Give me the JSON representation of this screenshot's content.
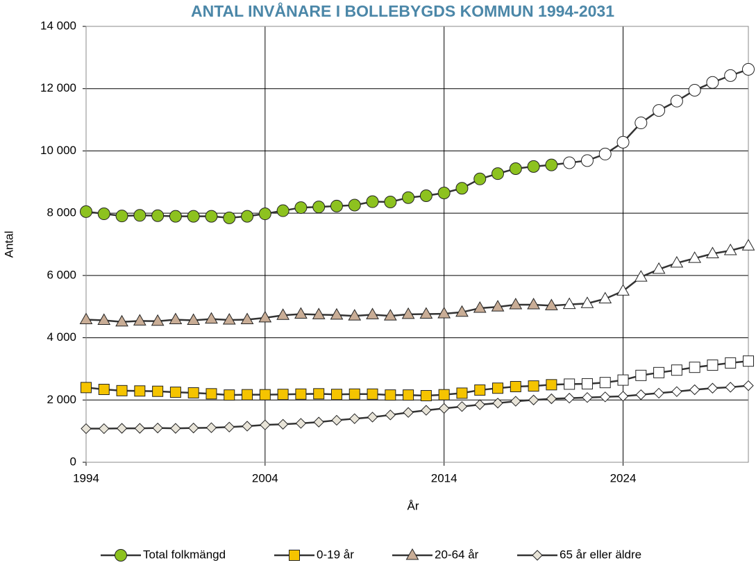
{
  "chart_data": {
    "type": "line",
    "title": "ANTAL INVÅNARE I BOLLEBYGDS KOMMUN 1994-2031",
    "x_label": "År",
    "y_label": "Antal",
    "x": [
      1994,
      1995,
      1996,
      1997,
      1998,
      1999,
      2000,
      2001,
      2002,
      2003,
      2004,
      2005,
      2006,
      2007,
      2008,
      2009,
      2010,
      2011,
      2012,
      2013,
      2014,
      2015,
      2016,
      2017,
      2018,
      2019,
      2020,
      2021,
      2022,
      2023,
      2024,
      2025,
      2026,
      2027,
      2028,
      2029,
      2030,
      2031
    ],
    "forecast_start": 2021,
    "forecast_color": "#ffffff",
    "series": [
      {
        "name": "Total folkmängd",
        "color": "#8dc21f",
        "marker": "circle",
        "values": [
          8050,
          7980,
          7910,
          7930,
          7920,
          7900,
          7900,
          7900,
          7850,
          7900,
          7980,
          8080,
          8180,
          8200,
          8230,
          8260,
          8370,
          8360,
          8500,
          8560,
          8650,
          8800,
          9100,
          9270,
          9430,
          9500,
          9550,
          9620,
          9690,
          9900,
          10280,
          10900,
          11300,
          11600,
          11950,
          12200,
          12420,
          12620
        ]
      },
      {
        "name": "0-19 år",
        "color": "#f5c400",
        "marker": "square",
        "values": [
          2400,
          2340,
          2300,
          2290,
          2280,
          2250,
          2230,
          2200,
          2160,
          2170,
          2170,
          2180,
          2190,
          2200,
          2180,
          2190,
          2190,
          2160,
          2160,
          2140,
          2170,
          2220,
          2320,
          2380,
          2430,
          2450,
          2490,
          2510,
          2520,
          2560,
          2640,
          2790,
          2880,
          2960,
          3050,
          3120,
          3190,
          3250
        ]
      },
      {
        "name": "20-64 år",
        "color": "#c9ad96",
        "marker": "triangle",
        "values": [
          4580,
          4560,
          4510,
          4540,
          4530,
          4580,
          4560,
          4600,
          4570,
          4580,
          4640,
          4720,
          4760,
          4740,
          4730,
          4700,
          4740,
          4700,
          4750,
          4760,
          4770,
          4820,
          4950,
          4990,
          5060,
          5060,
          5030,
          5070,
          5100,
          5250,
          5500,
          5950,
          6200,
          6400,
          6550,
          6700,
          6800,
          6950
        ]
      },
      {
        "name": "65 år eller äldre",
        "color": "#e8e4d8",
        "marker": "diamond",
        "values": [
          1080,
          1080,
          1090,
          1090,
          1100,
          1090,
          1100,
          1110,
          1130,
          1160,
          1200,
          1220,
          1250,
          1290,
          1350,
          1400,
          1450,
          1520,
          1600,
          1670,
          1730,
          1790,
          1850,
          1900,
          1960,
          2000,
          2040,
          2060,
          2080,
          2100,
          2120,
          2170,
          2220,
          2270,
          2330,
          2380,
          2410,
          2460
        ]
      }
    ],
    "xlim": [
      1994,
      2031
    ],
    "xticks": [
      1994,
      2004,
      2014,
      2024
    ],
    "ylim": [
      0,
      14000
    ],
    "yticks": [
      0,
      {
        "value": 2000,
        "label": "2 000"
      },
      {
        "value": 4000,
        "label": "4 000"
      },
      {
        "value": 6000,
        "label": "6 000"
      },
      {
        "value": 8000,
        "label": "8 000"
      },
      {
        "value": 10000,
        "label": "10 000"
      },
      {
        "value": 12000,
        "label": "12 000"
      },
      {
        "value": 14000,
        "label": "14 000"
      }
    ],
    "grid": true,
    "legend": "bottom"
  }
}
